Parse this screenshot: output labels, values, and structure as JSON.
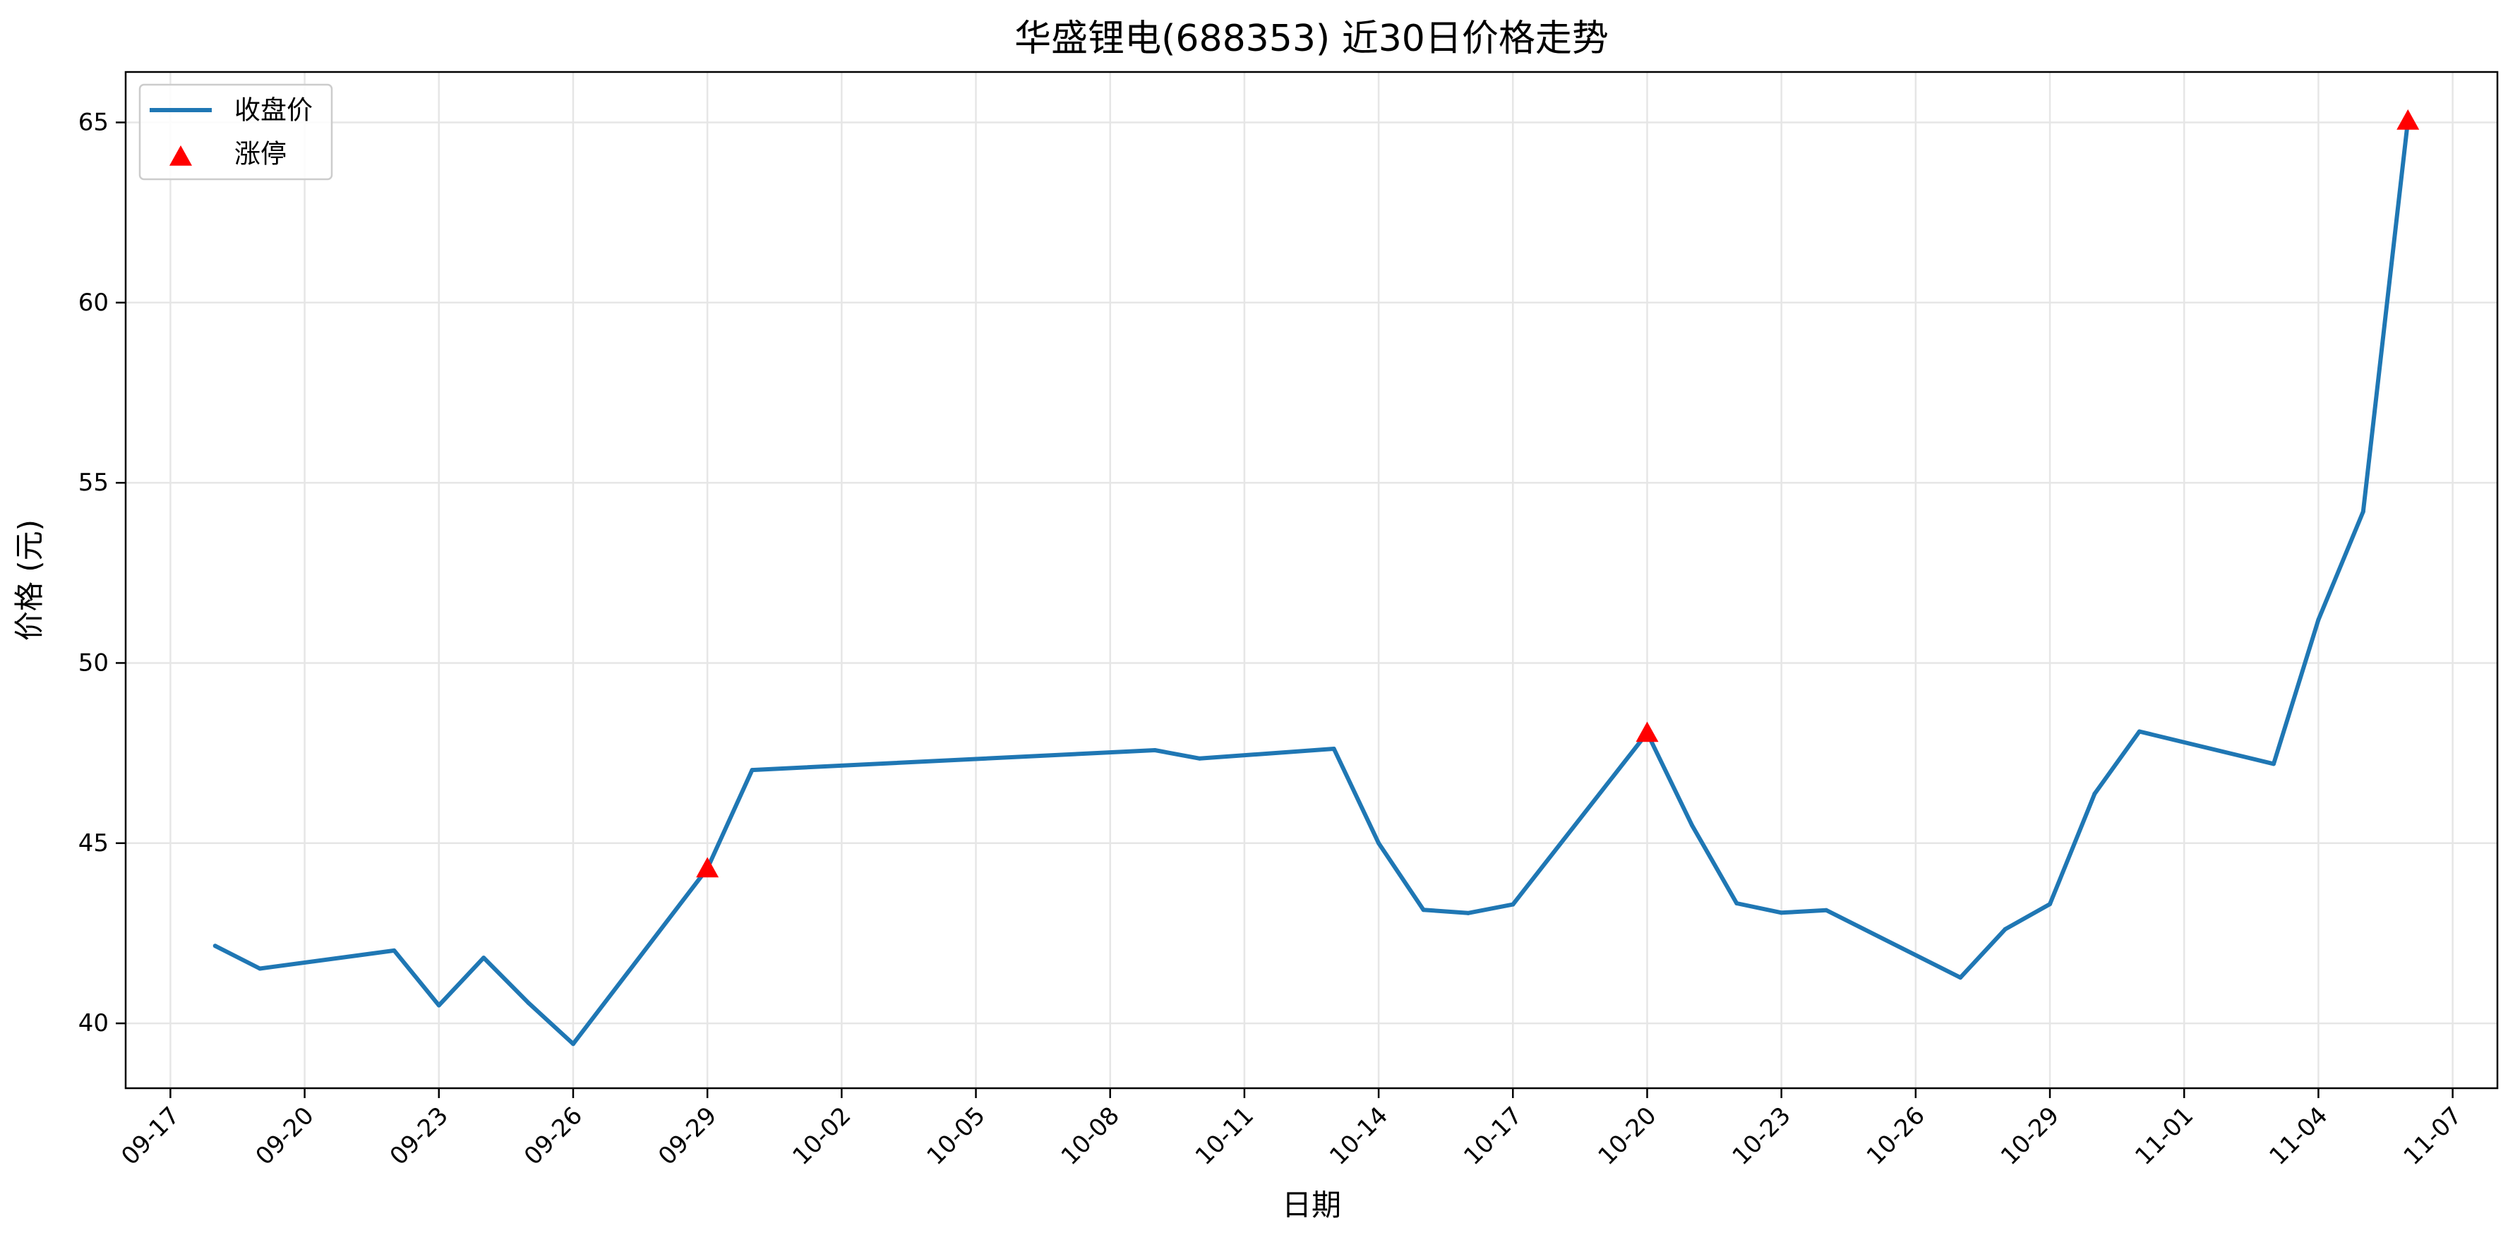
{
  "chart_data": {
    "type": "line",
    "title": "华盛锂电(688353) 近30日价格走势",
    "xlabel": "日期",
    "ylabel": "价格 (元)",
    "grid": true,
    "legend_position": "top-left",
    "x_axis": {
      "kind": "date",
      "range": [
        "2025-09-16",
        "2025-11-08"
      ],
      "ticks": [
        "09-17",
        "09-20",
        "09-23",
        "09-26",
        "09-29",
        "10-02",
        "10-05",
        "10-08",
        "10-11",
        "10-14",
        "10-17",
        "10-20",
        "10-23",
        "10-26",
        "10-29",
        "11-01",
        "11-04",
        "11-07"
      ],
      "tick_values": [
        "2025-09-17",
        "2025-09-20",
        "2025-09-23",
        "2025-09-26",
        "2025-09-29",
        "2025-10-02",
        "2025-10-05",
        "2025-10-08",
        "2025-10-11",
        "2025-10-14",
        "2025-10-17",
        "2025-10-20",
        "2025-10-23",
        "2025-10-26",
        "2025-10-29",
        "2025-11-01",
        "2025-11-04",
        "2025-11-07"
      ]
    },
    "y_axis": {
      "range": [
        38.2,
        66.4
      ],
      "ticks": [
        40,
        45,
        50,
        55,
        60,
        65
      ]
    },
    "series": [
      {
        "name": "收盘价",
        "type": "line",
        "color": "#1f77b4",
        "points": [
          [
            "2025-09-18",
            42.15
          ],
          [
            "2025-09-19",
            41.52
          ],
          [
            "2025-09-22",
            42.02
          ],
          [
            "2025-09-23",
            40.5
          ],
          [
            "2025-09-24",
            41.82
          ],
          [
            "2025-09-25",
            40.57
          ],
          [
            "2025-09-26",
            39.43
          ],
          [
            "2025-09-29",
            44.3
          ],
          [
            "2025-09-30",
            47.03
          ],
          [
            "2025-10-09",
            47.58
          ],
          [
            "2025-10-10",
            47.35
          ],
          [
            "2025-10-13",
            47.62
          ],
          [
            "2025-10-14",
            45.0
          ],
          [
            "2025-10-15",
            43.15
          ],
          [
            "2025-10-16",
            43.06
          ],
          [
            "2025-10-17",
            43.3
          ],
          [
            "2025-10-20",
            48.06
          ],
          [
            "2025-10-21",
            45.5
          ],
          [
            "2025-10-22",
            43.33
          ],
          [
            "2025-10-23",
            43.07
          ],
          [
            "2025-10-24",
            43.14
          ],
          [
            "2025-10-27",
            41.27
          ],
          [
            "2025-10-28",
            42.61
          ],
          [
            "2025-10-29",
            43.31
          ],
          [
            "2025-10-30",
            46.37
          ],
          [
            "2025-10-31",
            48.1
          ],
          [
            "2025-11-03",
            47.2
          ],
          [
            "2025-11-04",
            51.2
          ],
          [
            "2025-11-05",
            54.2
          ],
          [
            "2025-11-06",
            65.05
          ]
        ]
      },
      {
        "name": "涨停",
        "type": "scatter",
        "marker": "triangle",
        "color": "#ff0000",
        "points": [
          [
            "2025-09-29",
            44.3
          ],
          [
            "2025-10-20",
            48.06
          ],
          [
            "2025-11-06",
            65.05
          ]
        ]
      }
    ]
  }
}
